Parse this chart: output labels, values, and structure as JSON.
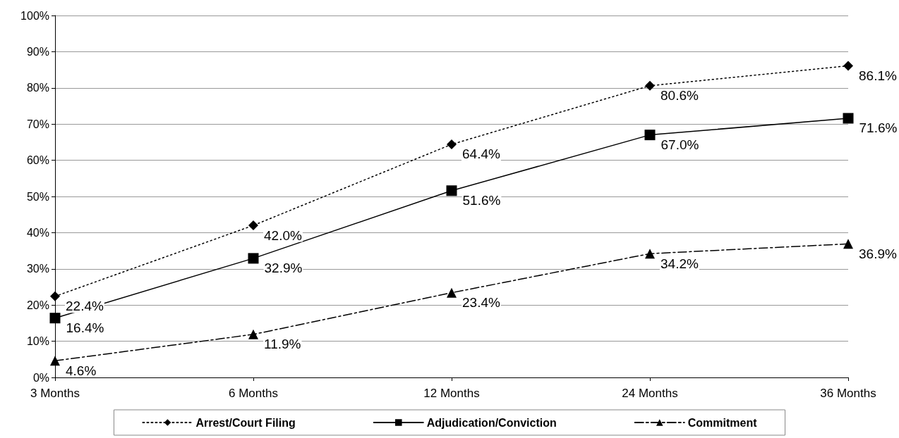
{
  "chart_data": {
    "type": "line",
    "categories": [
      "3 Months",
      "6 Months",
      "12 Months",
      "24 Months",
      "36 Months"
    ],
    "series": [
      {
        "name": "Arrest/Court Filing",
        "color": "#000000",
        "values": [
          22.4,
          42.0,
          64.4,
          80.6,
          86.1
        ],
        "value_labels": [
          "22.4%",
          "42.0%",
          "64.4%",
          "80.6%",
          "86.1%"
        ],
        "marker": "diamond",
        "line_style": "dotted"
      },
      {
        "name": "Adjudication/Conviction",
        "color": "#000000",
        "values": [
          16.4,
          32.9,
          51.6,
          67.0,
          71.6
        ],
        "value_labels": [
          "16.4%",
          "32.9%",
          "51.6%",
          "67.0%",
          "71.6%"
        ],
        "marker": "square",
        "line_style": "solid"
      },
      {
        "name": "Commitment",
        "color": "#000000",
        "values": [
          4.6,
          11.9,
          23.4,
          34.2,
          36.9
        ],
        "value_labels": [
          "4.6%",
          "11.9%",
          "23.4%",
          "34.2%",
          "36.9%"
        ],
        "marker": "triangle",
        "line_style": "dashed"
      }
    ],
    "ylim": [
      0,
      100
    ],
    "yticks": [
      {
        "value": 0,
        "label": "0%"
      },
      {
        "value": 10,
        "label": "10%"
      },
      {
        "value": 20,
        "label": "20%"
      },
      {
        "value": 30,
        "label": "30%"
      },
      {
        "value": 40,
        "label": "40%"
      },
      {
        "value": 50,
        "label": "50%"
      },
      {
        "value": 60,
        "label": "60%"
      },
      {
        "value": 70,
        "label": "70%"
      },
      {
        "value": 80,
        "label": "80%"
      },
      {
        "value": 90,
        "label": "90%"
      },
      {
        "value": 100,
        "label": "100%"
      }
    ],
    "grid": "y",
    "legend": "bottom"
  }
}
